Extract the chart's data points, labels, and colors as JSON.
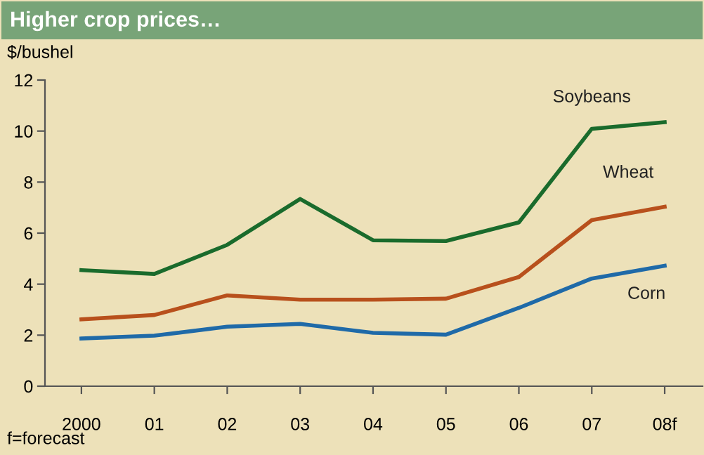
{
  "chart_data": {
    "type": "line",
    "title": "Higher crop prices…",
    "ylabel": "$/bushel",
    "categories": [
      "2000",
      "01",
      "02",
      "03",
      "04",
      "05",
      "06",
      "07",
      "08f"
    ],
    "series": [
      {
        "name": "Soybeans",
        "color": "#1a6b2c",
        "values": [
          4.55,
          4.4,
          5.54,
          7.34,
          5.72,
          5.69,
          6.42,
          10.09,
          10.35
        ]
      },
      {
        "name": "Wheat",
        "color": "#b8501c",
        "values": [
          2.62,
          2.79,
          3.56,
          3.39,
          3.39,
          3.43,
          4.28,
          6.51,
          7.03
        ]
      },
      {
        "name": "Corn",
        "color": "#1f6aa8",
        "values": [
          1.87,
          1.98,
          2.33,
          2.44,
          2.09,
          2.02,
          3.07,
          4.22,
          4.72
        ]
      }
    ],
    "ylim": [
      0,
      12
    ],
    "yticks": [
      0,
      2,
      4,
      6,
      8,
      10,
      12
    ],
    "grid": false,
    "legend": false,
    "marker": "none",
    "line_style": "solid",
    "annotations": [
      "f=forecast"
    ]
  }
}
